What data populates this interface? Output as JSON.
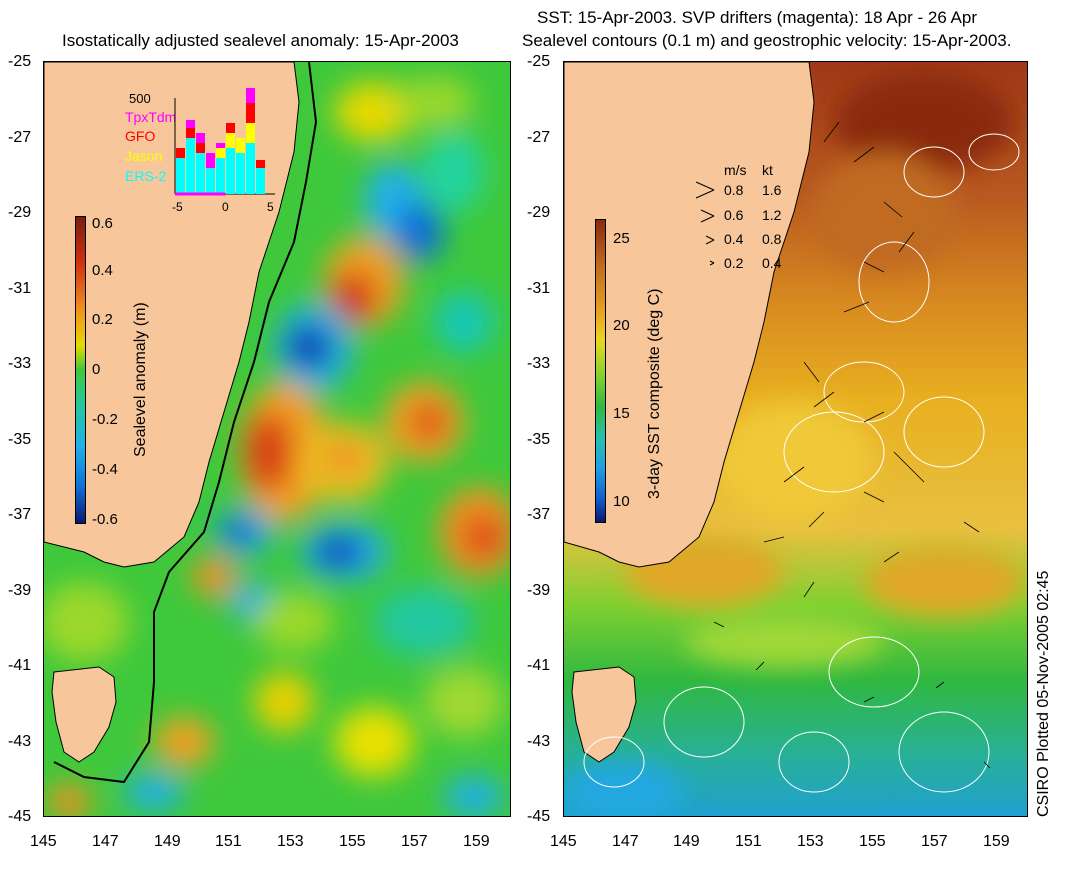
{
  "left_panel": {
    "title": "Isostatically adjusted sealevel anomaly: 15-Apr-2003",
    "colorbar": {
      "label": "Sealevel anomaly (m)",
      "ticks": [
        "0.6",
        "0.4",
        "0.2",
        "0",
        "-0.2",
        "-0.4",
        "-0.6"
      ]
    },
    "inset": {
      "ymax_label": "500",
      "legend": [
        {
          "label": "TpxTdm",
          "color": "#ff00ff"
        },
        {
          "label": "GFO",
          "color": "#ff0000"
        },
        {
          "label": "Jason",
          "color": "#ffff00"
        },
        {
          "label": "ERS-2",
          "color": "#00ffff"
        }
      ],
      "x_ticks": [
        "-5",
        "0",
        "5"
      ]
    }
  },
  "right_panel": {
    "title_line1": "SST: 15-Apr-2003. SVP drifters (magenta): 18 Apr - 26 Apr",
    "title_line2": "Sealevel contours (0.1 m) and geostrophic velocity: 15-Apr-2003.",
    "colorbar": {
      "label": "3-day SST composite (deg C)",
      "ticks": [
        "25",
        "20",
        "15",
        "10"
      ]
    },
    "velocity_legend": {
      "header_ms": "m/s",
      "header_kt": "kt",
      "rows": [
        {
          "ms": "0.8",
          "kt": "1.6"
        },
        {
          "ms": "0.6",
          "kt": "1.2"
        },
        {
          "ms": "0.4",
          "kt": "0.8"
        },
        {
          "ms": "0.2",
          "kt": "0.4"
        }
      ]
    }
  },
  "axes": {
    "lat_ticks": [
      "-25",
      "-27",
      "-29",
      "-31",
      "-33",
      "-35",
      "-37",
      "-39",
      "-41",
      "-43",
      "-45"
    ],
    "lon_ticks": [
      "145",
      "147",
      "149",
      "151",
      "153",
      "155",
      "157",
      "159"
    ]
  },
  "credit": "CSIRO Plotted 05-Nov-2005 02:45",
  "colors": {
    "land": "#f7c79b",
    "coast": "#000000",
    "ocean_green": "#22b43a"
  }
}
